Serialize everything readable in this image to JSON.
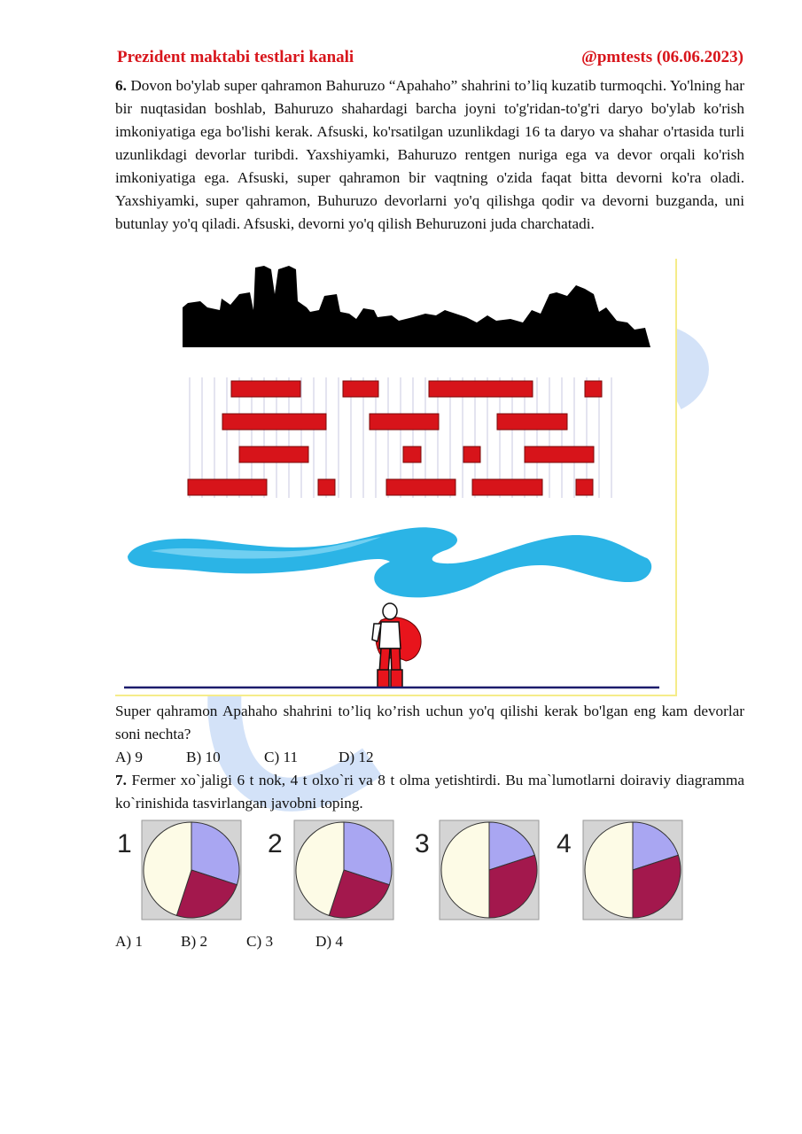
{
  "header": {
    "left": "Prezident maktabi testlari kanali",
    "right": "@pmtests (06.06.2023)"
  },
  "q6": {
    "number": "6.",
    "text": "Dovon bo'ylab super qahramon Bahuruzo “Apahaho” shahrini to’liq kuzatib turmoqchi. Yo'lning har bir nuqtasidan boshlab, Bahuruzo shahardagi barcha joyni to'g'ridan-to'g'ri daryo bo'ylab ko'rish imkoniyatiga ega bo'lishi kerak. Afsuski, ko'rsatilgan uzunlikdagi 16 ta daryo va shahar o'rtasida turli uzunlikdagi devorlar turibdi. Yaxshiyamki, Bahuruzo rentgen nuriga ega va devor orqali ko'rish imkoniyatiga ega. Afsuski, super qahramon bir vaqtning o'zida faqat bitta devorni ko'ra oladi. Yaxshiyamki, super qahramon, Buhuruzo devorlarni yo'q qilishga qodir va devorni buzganda, uni butunlay yo'q qiladi. Afsuski, devorni yo'q qilish Behuruzoni juda charchatadi.",
    "question": "Super qahramon Apahaho shahrini to’liq ko’rish uchun yo'q qilishi kerak bo'lgan eng kam devorlar soni nechta?",
    "options": [
      "A) 9",
      "B) 10",
      "C) 11",
      "D) 12"
    ],
    "colors": {
      "wall": "#d7141a",
      "wall_border": "#7a0a0a",
      "river": "#2bb4e6",
      "skyline": "#000000"
    }
  },
  "q7": {
    "number": "7.",
    "text": "Fermer xo`jaligi 6 t nok, 4 t olxo`ri va 8 t olma yetishtirdi. Bu ma`lumotlarni doiraviy diagramma ko`rinishida tasvirlangan javobni toping.",
    "options": [
      "A) 1",
      "B) 2",
      "C) 3",
      "D) 4"
    ],
    "pies": [
      {
        "label": "1",
        "slices": [
          {
            "value": 0.3,
            "color": "#a9a6f2"
          },
          {
            "value": 0.25,
            "color": "#a3184d"
          },
          {
            "value": 0.45,
            "color": "#fdfbe6"
          }
        ]
      },
      {
        "label": "2",
        "slices": [
          {
            "value": 0.3,
            "color": "#a9a6f2"
          },
          {
            "value": 0.25,
            "color": "#a3184d"
          },
          {
            "value": 0.45,
            "color": "#fdfbe6"
          }
        ]
      },
      {
        "label": "3",
        "slices": [
          {
            "value": 0.2,
            "color": "#a9a6f2"
          },
          {
            "value": 0.3,
            "color": "#a3184d"
          },
          {
            "value": 0.5,
            "color": "#fdfbe6"
          }
        ]
      },
      {
        "label": "4",
        "slices": [
          {
            "value": 0.2,
            "color": "#a9a6f2"
          },
          {
            "value": 0.3,
            "color": "#a3184d"
          },
          {
            "value": 0.5,
            "color": "#fdfbe6"
          }
        ]
      }
    ]
  }
}
